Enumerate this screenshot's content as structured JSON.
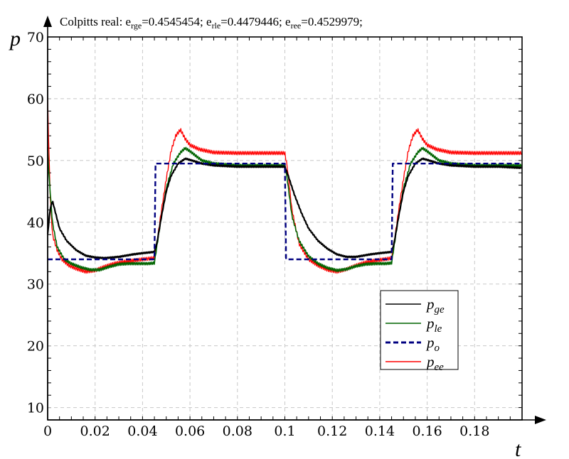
{
  "chart_data": {
    "type": "line",
    "title_parts": [
      "Colpitts real: e",
      "rge",
      "=0.4545454; e",
      "rle",
      "=0.4479446; e",
      "ree",
      "=0.4529979;"
    ],
    "xlabel": "t",
    "ylabel": "p",
    "xlim": [
      0,
      0.2
    ],
    "ylim": [
      8,
      70
    ],
    "xticks": [
      "0",
      "0.02",
      "0.04",
      "0.06",
      "0.08",
      "0.1",
      "0.12",
      "0.14",
      "0.16",
      "0.18"
    ],
    "yticks": [
      "10",
      "20",
      "30",
      "40",
      "50",
      "60",
      "70"
    ],
    "grid": true,
    "legend": {
      "placement": "bottom-right",
      "entries": [
        {
          "base": "p",
          "sub": "ge"
        },
        {
          "base": "p",
          "sub": "le"
        },
        {
          "base": "p",
          "sub": "o"
        },
        {
          "base": "p",
          "sub": "ee"
        }
      ]
    },
    "colors": {
      "pge": "#000000",
      "ple": "#006400",
      "po": "#000080",
      "pee": "#ff0000"
    },
    "series": [
      {
        "name": "p_ge",
        "key": "pge",
        "x": [
          0,
          0.001,
          0.002,
          0.003,
          0.005,
          0.008,
          0.012,
          0.016,
          0.02,
          0.024,
          0.03,
          0.036,
          0.04,
          0.045,
          0.046,
          0.048,
          0.05,
          0.052,
          0.055,
          0.058,
          0.06,
          0.065,
          0.07,
          0.08,
          0.09,
          0.1,
          0.101,
          0.104,
          0.107,
          0.11,
          0.114,
          0.118,
          0.122,
          0.126,
          0.13,
          0.136,
          0.14,
          0.145,
          0.146,
          0.148,
          0.15,
          0.152,
          0.155,
          0.158,
          0.16,
          0.165,
          0.17,
          0.18,
          0.19,
          0.2
        ],
        "y": [
          38,
          42,
          43.5,
          42,
          39,
          37,
          35.5,
          34.6,
          34.3,
          34.2,
          34.4,
          34.8,
          35,
          35.2,
          36.5,
          41,
          45,
          47.5,
          49.5,
          50.3,
          50.1,
          49.5,
          49.2,
          49,
          49,
          49,
          48,
          44.5,
          41.5,
          39,
          37,
          35.7,
          34.8,
          34.4,
          34.4,
          34.8,
          35,
          35.2,
          36.5,
          41,
          45,
          47.5,
          49.5,
          50.3,
          50.1,
          49.5,
          49.2,
          49,
          49,
          48.8
        ]
      },
      {
        "name": "p_le",
        "key": "ple",
        "x": [
          0,
          0.0005,
          0.002,
          0.004,
          0.007,
          0.01,
          0.014,
          0.018,
          0.022,
          0.026,
          0.03,
          0.034,
          0.038,
          0.042,
          0.045,
          0.046,
          0.048,
          0.05,
          0.053,
          0.056,
          0.058,
          0.06,
          0.065,
          0.07,
          0.08,
          0.09,
          0.1,
          0.101,
          0.103,
          0.106,
          0.11,
          0.114,
          0.118,
          0.122,
          0.126,
          0.13,
          0.134,
          0.138,
          0.142,
          0.145,
          0.146,
          0.148,
          0.15,
          0.153,
          0.156,
          0.158,
          0.16,
          0.165,
          0.17,
          0.18,
          0.19,
          0.2
        ],
        "y": [
          52,
          48,
          40,
          36,
          34,
          33.3,
          32.7,
          32.3,
          32.3,
          32.8,
          33.2,
          33.3,
          33.3,
          33.3,
          33.4,
          36,
          41,
          45.5,
          49.5,
          51.3,
          52,
          51.5,
          50,
          49.5,
          49.2,
          49.2,
          49.2,
          47,
          41,
          37,
          34.5,
          33.3,
          32.6,
          32.2,
          32.4,
          32.9,
          33.2,
          33.3,
          33.3,
          33.4,
          36,
          41,
          45.5,
          49.5,
          51.3,
          52,
          51.5,
          50,
          49.5,
          49.2,
          49.2,
          49.2
        ]
      },
      {
        "name": "p_o",
        "key": "po",
        "x": [
          0,
          0.045,
          0.0455,
          0.1,
          0.1005,
          0.145,
          0.1455,
          0.2
        ],
        "y": [
          34,
          34,
          49.5,
          49.5,
          34,
          34,
          49.5,
          49.5
        ]
      },
      {
        "name": "p_ee",
        "key": "pee",
        "x": [
          0,
          0.0003,
          0.001,
          0.002,
          0.004,
          0.006,
          0.009,
          0.012,
          0.016,
          0.02,
          0.024,
          0.028,
          0.032,
          0.036,
          0.04,
          0.045,
          0.046,
          0.048,
          0.05,
          0.052,
          0.054,
          0.056,
          0.058,
          0.06,
          0.064,
          0.07,
          0.08,
          0.09,
          0.1,
          0.101,
          0.103,
          0.106,
          0.11,
          0.114,
          0.118,
          0.122,
          0.126,
          0.13,
          0.134,
          0.138,
          0.142,
          0.145,
          0.146,
          0.148,
          0.15,
          0.152,
          0.154,
          0.156,
          0.158,
          0.16,
          0.164,
          0.17,
          0.18,
          0.19,
          0.2
        ],
        "y": [
          60,
          55,
          45,
          38,
          35.5,
          34,
          33,
          32.5,
          32,
          32.2,
          32.8,
          33.3,
          33.6,
          33.8,
          34,
          34.2,
          36.5,
          42,
          47,
          51.5,
          54,
          55,
          53.5,
          52.5,
          51.8,
          51.3,
          51.2,
          51.2,
          51.2,
          49,
          42,
          36.5,
          34,
          33,
          32.3,
          32,
          32.4,
          33,
          33.5,
          33.8,
          34,
          34.2,
          36.5,
          42,
          47,
          51.5,
          54,
          55,
          53.5,
          52.5,
          51.8,
          51.3,
          51.2,
          51.2,
          51.2
        ]
      }
    ]
  }
}
